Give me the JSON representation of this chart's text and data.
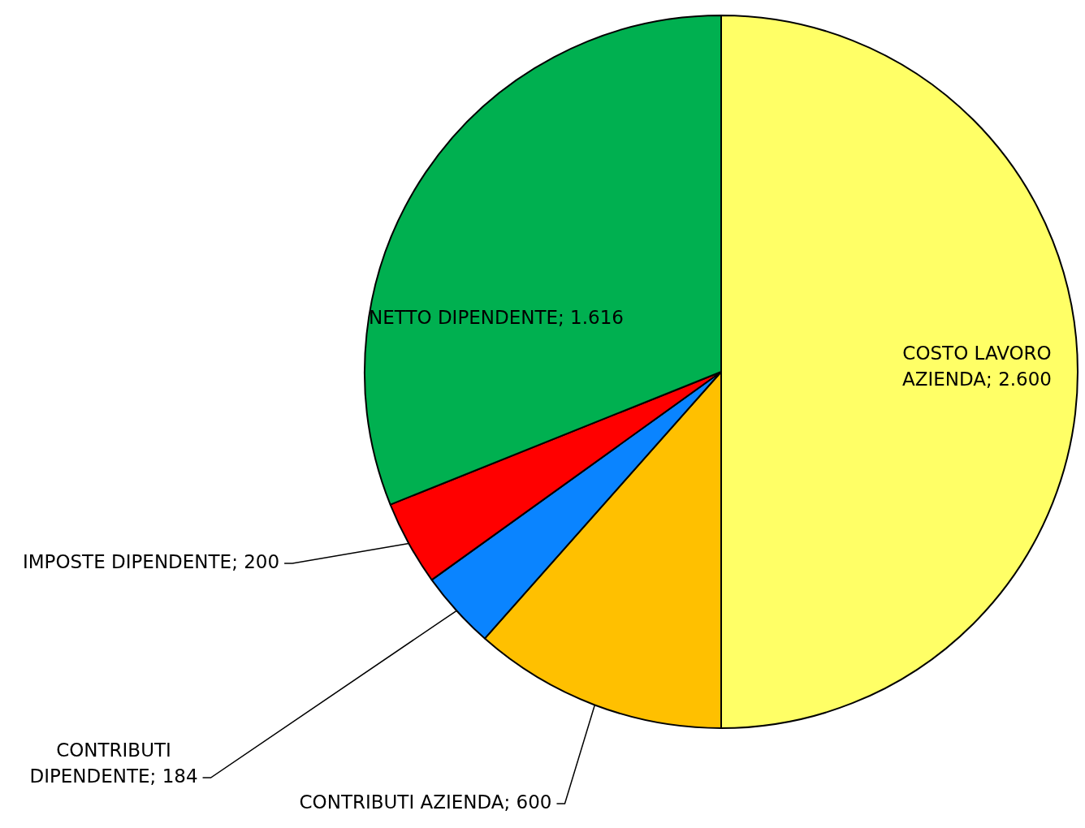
{
  "chart_data": {
    "type": "pie",
    "categories": [
      "COSTO LAVORO AZIENDA",
      "CONTRIBUTI AZIENDA",
      "CONTRIBUTI DIPENDENTE",
      "IMPOSTE DIPENDENTE",
      "NETTO DIPENDENTE"
    ],
    "values": [
      2600,
      600,
      184,
      200,
      1616
    ],
    "value_labels": [
      "2.600",
      "600",
      "184",
      "200",
      "1.616"
    ],
    "colors": [
      "#ffff66",
      "#ffc000",
      "#0a84ff",
      "#ff0000",
      "#00b050"
    ],
    "legend": false
  }
}
